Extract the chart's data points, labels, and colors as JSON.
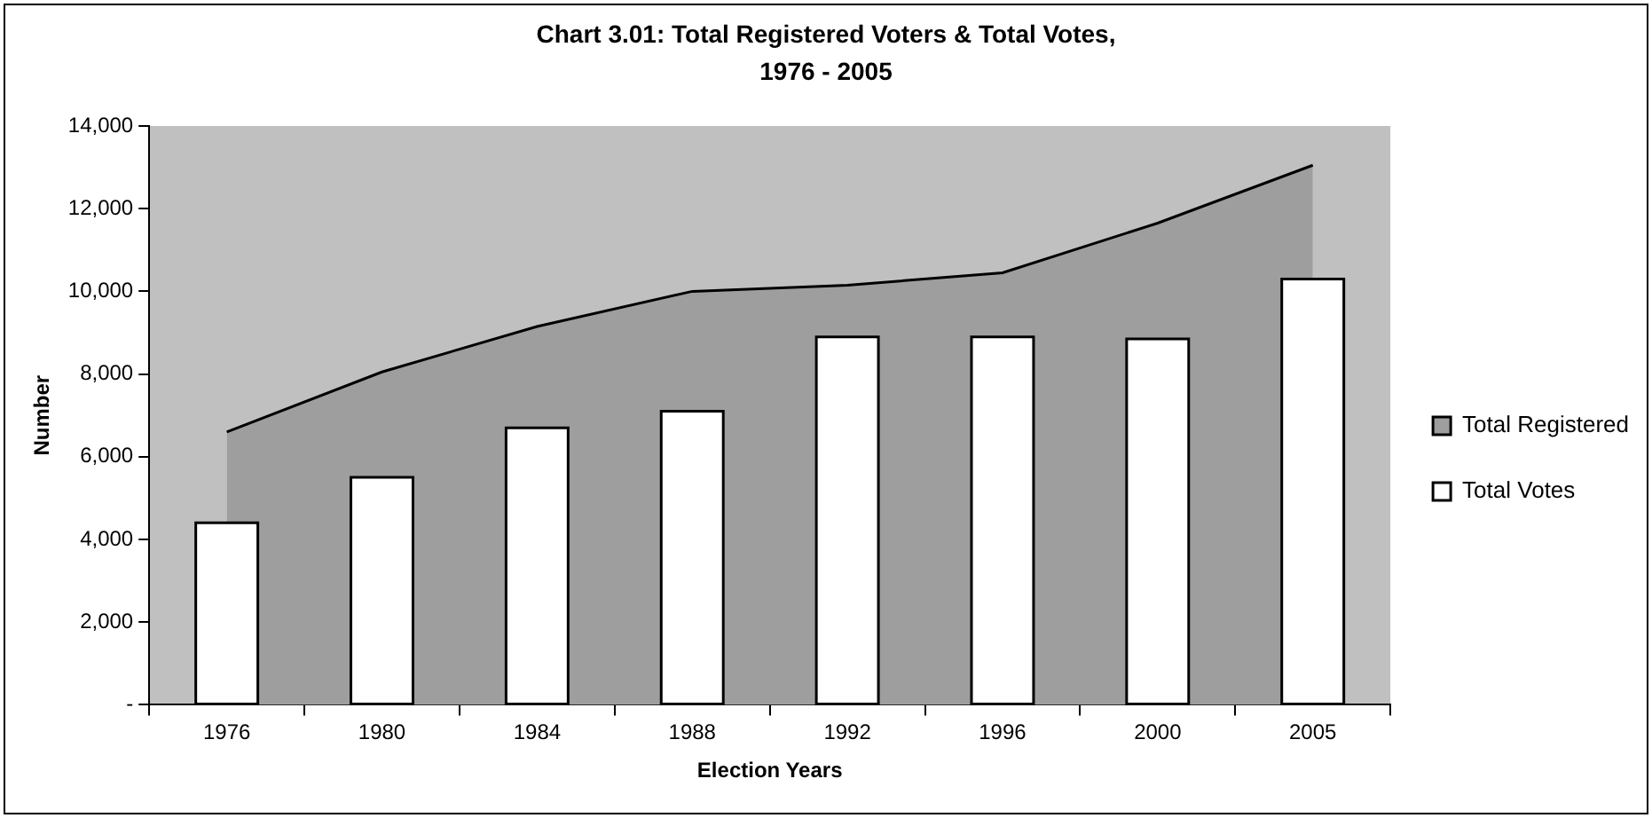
{
  "chart_data": {
    "type": "bar",
    "title": "Chart 3.01: Total Registered Voters & Total Votes, 1976 - 2005",
    "xlabel": "Election Years",
    "ylabel": "Number",
    "categories": [
      "1976",
      "1980",
      "1984",
      "1988",
      "1992",
      "1996",
      "2000",
      "2005"
    ],
    "series": [
      {
        "name": "Total Registered",
        "type": "area",
        "color": "#9e9e9e",
        "values": [
          6600,
          8050,
          9150,
          10000,
          10150,
          10450,
          11650,
          13050
        ]
      },
      {
        "name": "Total Votes",
        "color": "#ffffff",
        "values": [
          4400,
          5500,
          6700,
          7100,
          8900,
          8900,
          8850,
          10300
        ]
      }
    ],
    "ylim": [
      0,
      14000
    ],
    "yticks": [
      {
        "value": 0,
        "label": "-"
      },
      {
        "value": 2000,
        "label": "2,000"
      },
      {
        "value": 4000,
        "label": "4,000"
      },
      {
        "value": 6000,
        "label": "6,000"
      },
      {
        "value": 8000,
        "label": "8,000"
      },
      {
        "value": 10000,
        "label": "10,000"
      },
      {
        "value": 12000,
        "label": "12,000"
      },
      {
        "value": 14000,
        "label": "14,000"
      }
    ],
    "grid": false,
    "legend": "right"
  }
}
